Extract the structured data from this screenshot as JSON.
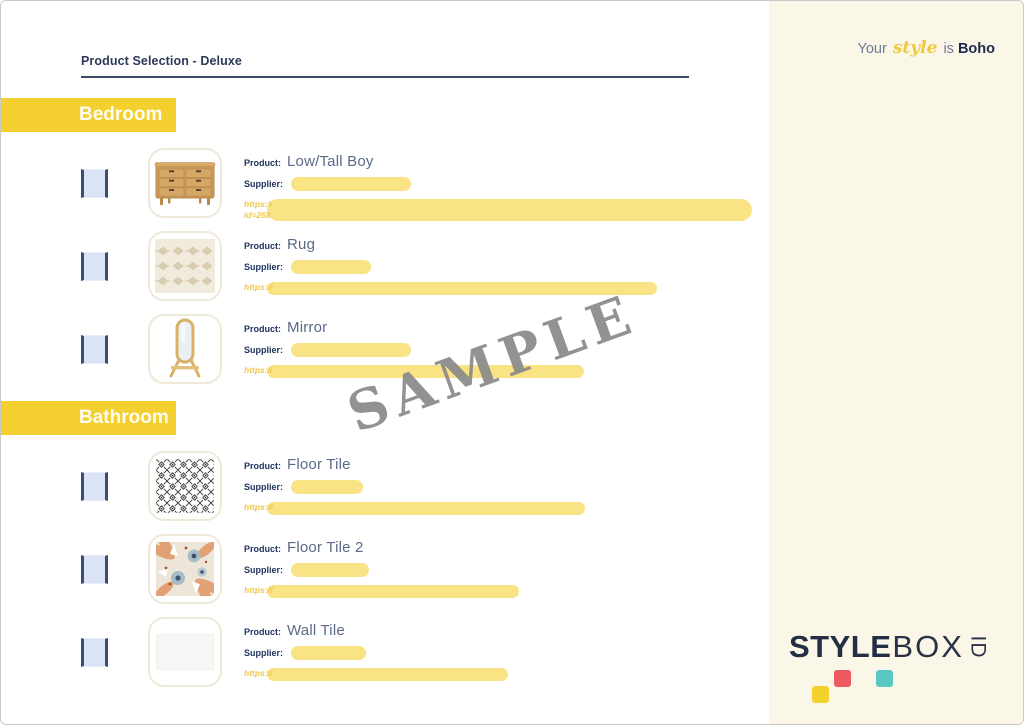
{
  "document": {
    "title": "Product Selection - Deluxe",
    "watermark": "SAMPLE"
  },
  "labels": {
    "product": "Product:",
    "supplier": "Supplier:"
  },
  "sections": [
    {
      "name": "Bedroom",
      "products": [
        {
          "name": "Low/Tall Boy",
          "image": "dresser-image",
          "supplier_redaction_width": 120,
          "url_lines": [
            "https://",
            "id=268"
          ],
          "url_redaction_width": 485
        },
        {
          "name": "Rug",
          "image": "rug-image",
          "supplier_redaction_width": 80,
          "url_lines": [
            "https://"
          ],
          "url_redaction_width": 390
        },
        {
          "name": "Mirror",
          "image": "mirror-image",
          "supplier_redaction_width": 120,
          "url_lines": [
            "https://"
          ],
          "url_redaction_width": 317
        }
      ]
    },
    {
      "name": "Bathroom",
      "products": [
        {
          "name": "Floor Tile",
          "image": "floor-tile-pattern-image",
          "supplier_redaction_width": 72,
          "url_lines": [
            "https://"
          ],
          "url_redaction_width": 318
        },
        {
          "name": "Floor Tile 2",
          "image": "floor-tile-floral-image",
          "supplier_redaction_width": 78,
          "url_lines": [
            "https://"
          ],
          "url_redaction_width": 252
        },
        {
          "name": "Wall Tile",
          "image": "wall-tile-image",
          "supplier_redaction_width": 75,
          "url_lines": [
            "https://"
          ],
          "url_redaction_width": 241
        }
      ]
    }
  ],
  "sidebar": {
    "tagline": {
      "prefix": "Your",
      "style_word": "style",
      "middle": "is",
      "style_name": "Boho"
    },
    "logo": {
      "part_bold": "STYLE",
      "part_light": "BOX",
      "part_rotated": "ID"
    },
    "logo_squares": [
      {
        "name": "yellow-square",
        "color": "#F4D22D"
      },
      {
        "name": "red-square",
        "color": "#EE5A5F"
      },
      {
        "name": "teal-square",
        "color": "#5AC8C2"
      }
    ]
  },
  "colors": {
    "banner_yellow": "#F3D02F",
    "highlight_yellow": "#F9E385",
    "url_text_yellow": "#EFC84D",
    "label_navy": "#1F3460",
    "product_name_gray": "#5A6A87",
    "title_navy": "#2C3A58",
    "sidebar_cream": "#FBF7E8",
    "watermark_gray": "#8A8A8A",
    "logo_navy": "#232E44",
    "checkbox_fill": "#DBE3F7",
    "checkbox_border": "#3D4C6F"
  }
}
